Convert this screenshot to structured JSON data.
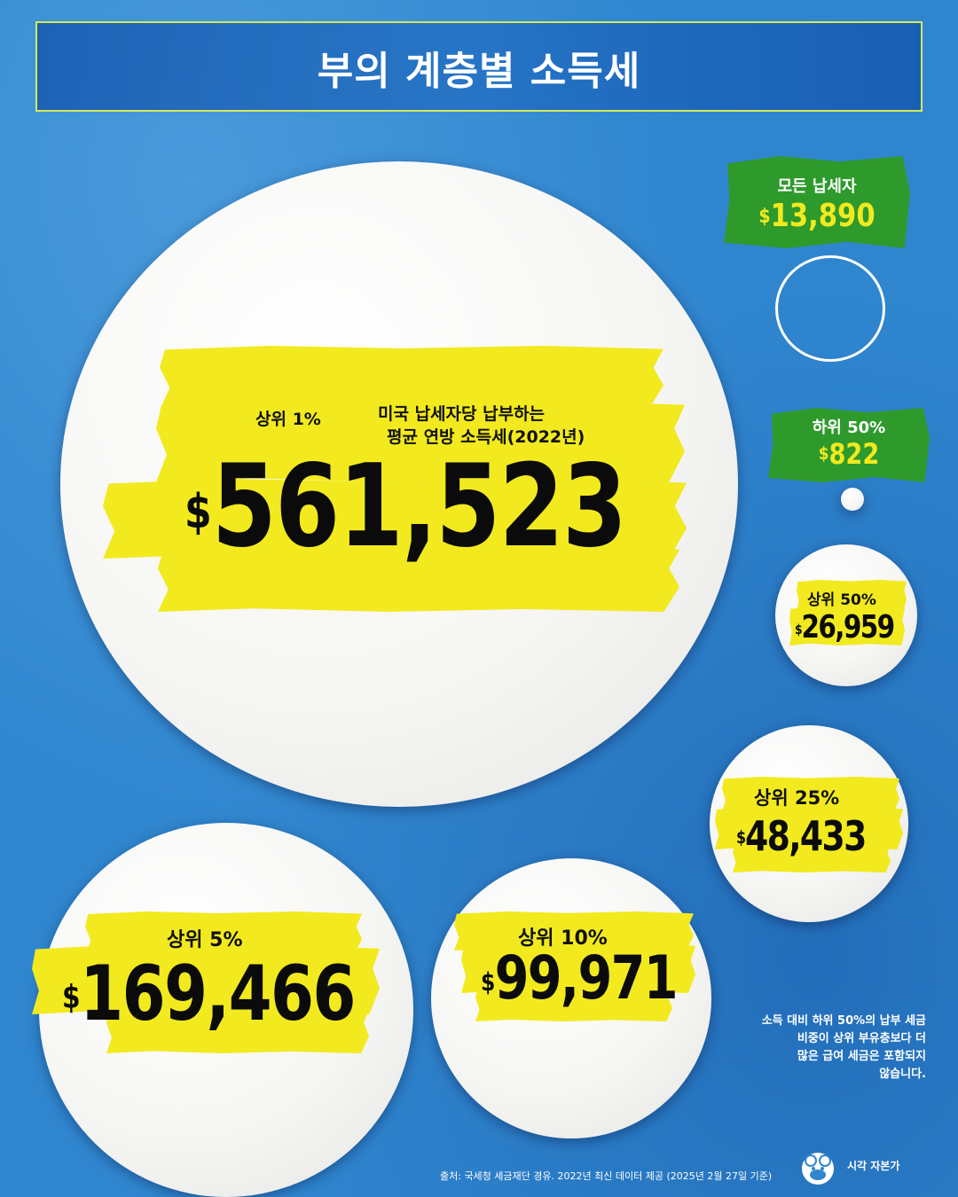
{
  "title": "부의 계층별 소득세",
  "chart_data": {
    "type": "bubble",
    "title": "부의 계층별 소득세",
    "subtitle": "미국 납세자당 납부하는 평균 연방 소득세(2022년)",
    "unit": "$",
    "categories": [
      "상위 1%",
      "상위 5%",
      "상위 10%",
      "상위 25%",
      "상위 50%",
      "하위 50%",
      "모든 납세자"
    ],
    "values": [
      561523,
      169466,
      99971,
      48433,
      26959,
      822,
      13890
    ]
  },
  "bubbles": {
    "top1": {
      "label": "상위 1%",
      "value": "561,523",
      "currency": "$"
    },
    "top5": {
      "label": "상위 5%",
      "value": "169,466",
      "currency": "$"
    },
    "top10": {
      "label": "상위 10%",
      "value": "99,971",
      "currency": "$"
    },
    "top25": {
      "label": "상위 25%",
      "value": "48,433",
      "currency": "$"
    },
    "top50": {
      "label": "상위 50%",
      "value": "26,959",
      "currency": "$"
    },
    "bottom50": {
      "label": "하위 50%",
      "value": "822",
      "currency": "$"
    },
    "all": {
      "label": "모든 납세자",
      "value": "13,890",
      "currency": "$"
    }
  },
  "subtitle_lines": [
    "미국 납세자당 납부하는",
    "평균 연방 소득세(2022년)"
  ],
  "note_lines": [
    "소득 대비 하위 50%의 납부 세금",
    "비중이 상위 부유층보다 더",
    "많은 급여 세금은 포함되지",
    "않습니다."
  ],
  "source": "출처: 국세청 세금재단 경유. 2022년 최신 데이터 제공 (2025년 2월 27일 기준)",
  "brand": "시각 자본가",
  "colors": {
    "background": "#2f86cf",
    "highlight": "#f2ea1e",
    "tag_green": "#2f9a2c",
    "title_border": "#d5e85a"
  }
}
